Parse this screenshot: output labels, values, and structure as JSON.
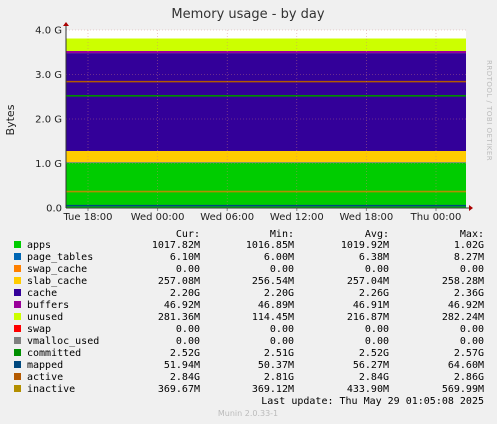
{
  "chart_data": {
    "type": "area",
    "title": "Memory usage - by day",
    "ylabel": "Bytes",
    "xlabel": "",
    "ylim": [
      0,
      4.0
    ],
    "y_unit": "G",
    "yticks": [
      "0.0",
      "1.0 G",
      "2.0 G",
      "3.0 G",
      "4.0 G"
    ],
    "x": [
      "Tue 18:00",
      "Wed 00:00",
      "Wed 06:00",
      "Wed 12:00",
      "Wed 18:00",
      "Thu 00:00"
    ],
    "grid": true,
    "side_label": "RRDTOOL / TOBI OETIKER",
    "stack_order": [
      "apps",
      "page_tables",
      "swap_cache",
      "slab_cache",
      "cache",
      "buffers",
      "unused"
    ],
    "series": [
      {
        "name": "apps",
        "color": "#00cc00",
        "role": "area",
        "cur": "1017.82M",
        "min": "1016.85M",
        "avg": "1019.92M",
        "max": "1.02G",
        "value": 1.018
      },
      {
        "name": "page_tables",
        "color": "#0066b3",
        "role": "area",
        "cur": "6.10M",
        "min": "6.00M",
        "avg": "6.38M",
        "max": "8.27M",
        "value": 0.006
      },
      {
        "name": "swap_cache",
        "color": "#ff8000",
        "role": "area",
        "cur": "0.00",
        "min": "0.00",
        "avg": "0.00",
        "max": "0.00",
        "value": 0.0
      },
      {
        "name": "slab_cache",
        "color": "#ffcc00",
        "role": "area",
        "cur": "257.08M",
        "min": "256.54M",
        "avg": "257.04M",
        "max": "258.28M",
        "value": 0.257
      },
      {
        "name": "cache",
        "color": "#330099",
        "role": "area",
        "cur": "2.20G",
        "min": "2.20G",
        "avg": "2.26G",
        "max": "2.36G",
        "value": 2.2
      },
      {
        "name": "buffers",
        "color": "#990099",
        "role": "area",
        "cur": "46.92M",
        "min": "46.89M",
        "avg": "46.91M",
        "max": "46.92M",
        "value": 0.047
      },
      {
        "name": "unused",
        "color": "#ccff00",
        "role": "area",
        "cur": "281.36M",
        "min": "114.45M",
        "avg": "216.87M",
        "max": "282.24M",
        "value": 0.281
      },
      {
        "name": "swap",
        "color": "#ff0000",
        "role": "none",
        "cur": "0.00",
        "min": "0.00",
        "avg": "0.00",
        "max": "0.00"
      },
      {
        "name": "vmalloc_used",
        "color": "#808080",
        "role": "none",
        "cur": "0.00",
        "min": "0.00",
        "avg": "0.00",
        "max": "0.00"
      },
      {
        "name": "committed",
        "color": "#008f00",
        "role": "line",
        "cur": "2.52G",
        "min": "2.51G",
        "avg": "2.52G",
        "max": "2.57G",
        "value": 2.52
      },
      {
        "name": "mapped",
        "color": "#00487d",
        "role": "line",
        "cur": "51.94M",
        "min": "50.37M",
        "avg": "56.27M",
        "max": "64.60M",
        "value": 0.052
      },
      {
        "name": "active",
        "color": "#b35a00",
        "role": "line",
        "cur": "2.84G",
        "min": "2.81G",
        "avg": "2.84G",
        "max": "2.86G",
        "value": 2.84
      },
      {
        "name": "inactive",
        "color": "#b38f00",
        "role": "line",
        "cur": "369.67M",
        "min": "369.12M",
        "avg": "433.90M",
        "max": "569.99M",
        "value": 0.37
      }
    ]
  },
  "legend_headers": {
    "cur": "Cur:",
    "min": "Min:",
    "avg": "Avg:",
    "max": "Max:"
  },
  "last_update": "Last update:  Thu May 29 01:05:08 2025",
  "footer": "Munin 2.0.33-1"
}
